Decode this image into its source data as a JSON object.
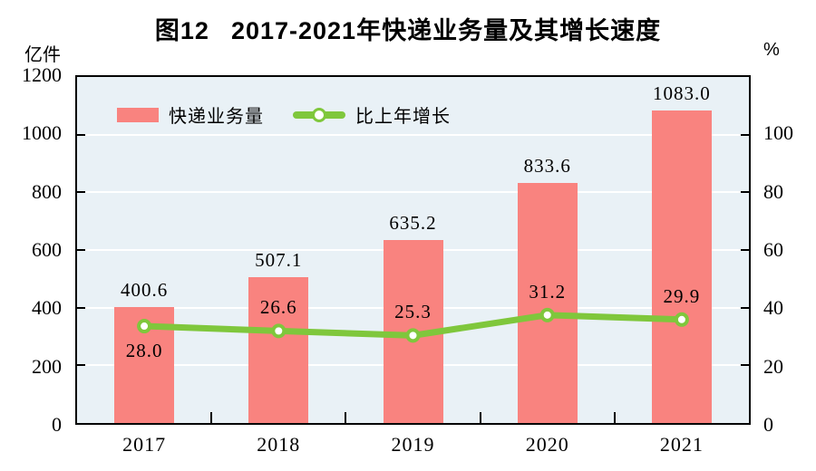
{
  "title": {
    "figure_no": "图12",
    "text": "2017-2021年快递业务量及其增长速度"
  },
  "axes": {
    "left_unit": "亿件",
    "right_unit": "%",
    "left_tick_labels": [
      "1200",
      "1000",
      "800",
      "600",
      "400",
      "200",
      "0"
    ],
    "right_tick_labels": [
      "100",
      "80",
      "60",
      "40",
      "20",
      "0"
    ]
  },
  "legend": {
    "bar_label": "快递业务量",
    "line_label": "比上年增长"
  },
  "chart_data": {
    "type": "bar",
    "categories": [
      "2017",
      "2018",
      "2019",
      "2020",
      "2021"
    ],
    "series": [
      {
        "name": "快递业务量",
        "type": "bar",
        "axis": "left",
        "unit": "亿件",
        "values": [
          400.6,
          507.1,
          635.2,
          833.6,
          1083.0
        ],
        "labels": [
          "400.6",
          "507.1",
          "635.2",
          "833.6",
          "1083.0"
        ],
        "color": "#f9837f"
      },
      {
        "name": "比上年增长",
        "type": "line",
        "axis": "right",
        "unit": "%",
        "values": [
          28.0,
          26.6,
          25.3,
          31.2,
          29.9
        ],
        "labels": [
          "28.0",
          "26.6",
          "25.3",
          "31.2",
          "29.9"
        ],
        "color": "#7fc73c",
        "marker": "circle-white-fill"
      }
    ],
    "left_axis": {
      "min": 0,
      "max": 1200,
      "step": 200
    },
    "right_axis": {
      "min": 0,
      "max": 100,
      "step": 20
    },
    "grid": true,
    "gridline_color": "#ffffff",
    "plot_background": "#e9f1f6",
    "legend_position": "top-left-inside",
    "title": "图12 2017-2021年快递业务量及其增长速度",
    "xlabel": "",
    "ylabel_left": "亿件",
    "ylabel_right": "%"
  }
}
